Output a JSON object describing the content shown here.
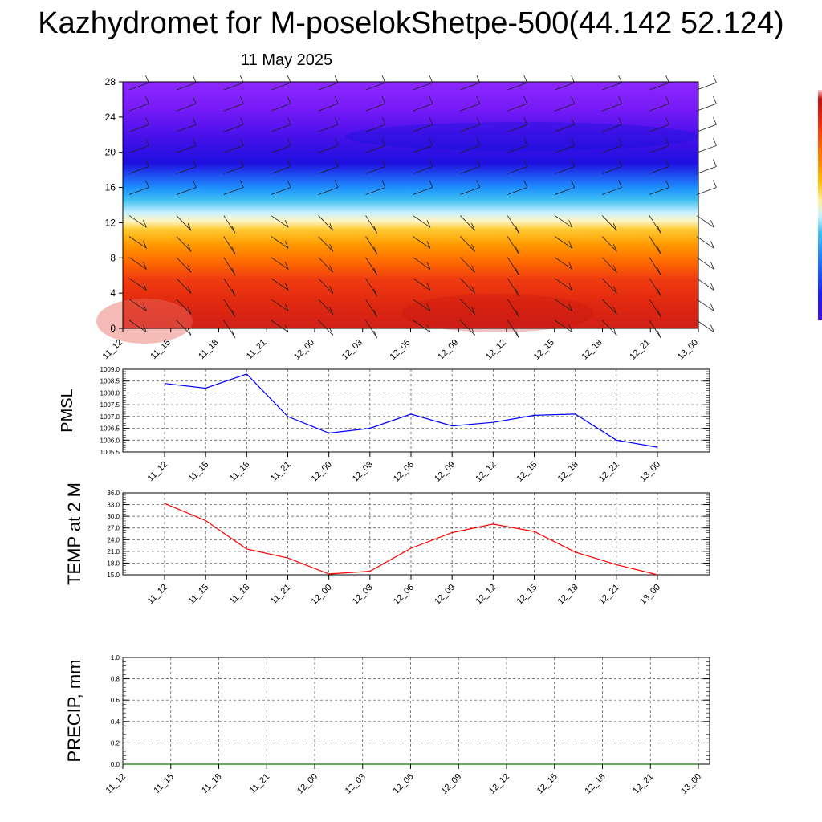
{
  "title": "Kazhydromet for M-poselokShetpe-500(44.142 52.124)",
  "date": "11 May 2025",
  "colors": {
    "pmsl_line": "#0000ff",
    "temp_line": "#ff0000",
    "precip_line": "#008000",
    "grid": "#000000"
  },
  "chart_data": [
    {
      "type": "heatmap",
      "title": "",
      "xlabel": "",
      "ylabel": "",
      "x_ticks": [
        "11_12",
        "11_15",
        "11_18",
        "11_21",
        "12_00",
        "12_03",
        "12_06",
        "12_09",
        "12_12",
        "12_15",
        "12_18",
        "12_21",
        "13_00"
      ],
      "y_ticks": [
        0,
        4,
        8,
        12,
        16,
        20,
        24,
        28
      ],
      "ylim": [
        0,
        28
      ],
      "overlay": "wind barbs",
      "color_scale": [
        "#d7301f",
        "#f03b20",
        "#ff5a00",
        "#ff8c00",
        "#ffc000",
        "#fffacd",
        "#87ceeb",
        "#1e90ff",
        "#1e1ee6",
        "#3c00dc",
        "#6e14f0",
        "#8c28ff"
      ],
      "description_levels": "red near surface, orange 6-10, yellow 12-13, cyan 14-16, deep blue 17-20, violet 21-28"
    },
    {
      "type": "line",
      "ylabel": "PMSL",
      "x": [
        "11_12",
        "11_15",
        "11_18",
        "11_21",
        "12_00",
        "12_03",
        "12_06",
        "12_09",
        "12_12",
        "12_15",
        "12_18",
        "12_21",
        "13_00"
      ],
      "series": [
        {
          "values": [
            1008.4,
            1008.2,
            1008.8,
            1007.0,
            1006.3,
            1006.5,
            1007.1,
            1006.6,
            1006.75,
            1007.05,
            1007.1,
            1006.0,
            1005.7
          ]
        }
      ],
      "ylim": [
        1005.5,
        1009.0
      ],
      "y_ticks": [
        "1005.5",
        "1006.0",
        "1006.5",
        "1007.0",
        "1007.5",
        "1008.0",
        "1008.5",
        "1009.0"
      ],
      "grid": true
    },
    {
      "type": "line",
      "ylabel": "TEMP at 2 M",
      "x": [
        "11_12",
        "11_15",
        "11_18",
        "11_21",
        "12_00",
        "12_03",
        "12_06",
        "12_09",
        "12_12",
        "12_15",
        "12_18",
        "12_21",
        "13_00"
      ],
      "series": [
        {
          "values": [
            33.3,
            28.9,
            21.6,
            19.3,
            15.2,
            15.9,
            21.8,
            25.8,
            28.0,
            26.1,
            20.8,
            17.6,
            15.0
          ]
        }
      ],
      "ylim": [
        15.0,
        36.0
      ],
      "y_ticks": [
        "15.0",
        "18.0",
        "21.0",
        "24.0",
        "27.0",
        "30.0",
        "33.0",
        "36.0"
      ],
      "grid": true
    },
    {
      "type": "line",
      "ylabel": "PRECIP, mm",
      "x": [
        "11_12",
        "11_15",
        "11_18",
        "11_21",
        "12_00",
        "12_03",
        "12_06",
        "12_09",
        "12_12",
        "12_15",
        "12_18",
        "12_21",
        "13_00"
      ],
      "series": [
        {
          "values": [
            0,
            0,
            0,
            0,
            0,
            0,
            0,
            0,
            0,
            0,
            0,
            0,
            0
          ]
        }
      ],
      "ylim": [
        0.0,
        1.0
      ],
      "y_ticks": [
        "0.0",
        "0.2",
        "0.4",
        "0.6",
        "0.8",
        "1.0"
      ],
      "grid": true
    }
  ]
}
